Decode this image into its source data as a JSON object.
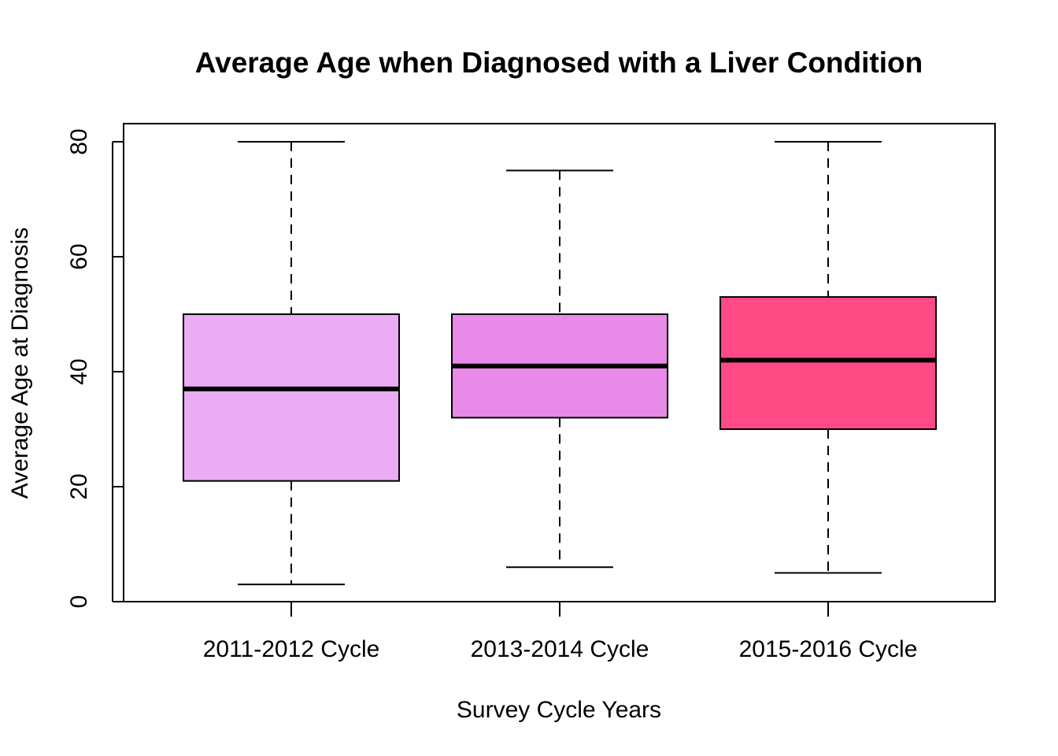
{
  "chart_data": {
    "type": "boxplot",
    "title": "Average Age when Diagnosed with a Liver Condition",
    "xlabel": "Survey Cycle Years",
    "ylabel": "Average Age at Diagnosis",
    "ylim": [
      0,
      80
    ],
    "yticks": [
      "0",
      "20",
      "40",
      "60",
      "80"
    ],
    "grid": false,
    "categories": [
      "2011-2012 Cycle",
      "2013-2014 Cycle",
      "2015-2016 Cycle"
    ],
    "boxes": [
      {
        "category": "2011-2012 Cycle",
        "min": 3,
        "q1": 21,
        "median": 37,
        "q3": 50,
        "max": 80,
        "color": "#EBABF5"
      },
      {
        "category": "2013-2014 Cycle",
        "min": 6,
        "q1": 32,
        "median": 41,
        "q3": 50,
        "max": 75,
        "color": "#E98AE9"
      },
      {
        "category": "2015-2016 Cycle",
        "min": 5,
        "q1": 30,
        "median": 42,
        "q3": 53,
        "max": 80,
        "color": "#FF4A85"
      }
    ]
  }
}
